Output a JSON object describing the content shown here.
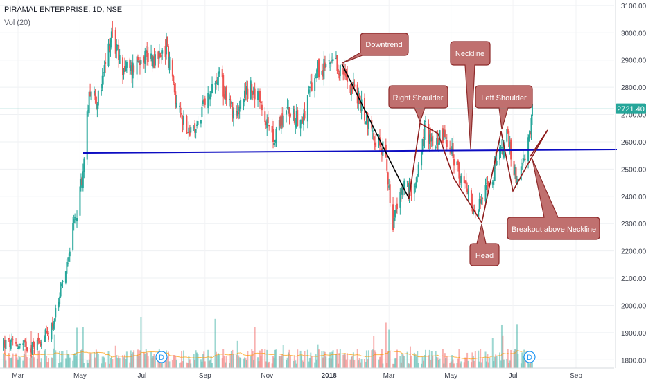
{
  "header": {
    "ticker": "PIRAMAL ENTERPRISE, 1D, NSE",
    "volume_label": "Vol (20)"
  },
  "colors": {
    "up": "#26a69a",
    "down": "#ef5350",
    "neckline": "#0d0dc2",
    "callout_fill": "#c0706f",
    "callout_stroke": "#8e2a2a",
    "pattern_line": "#8e1b1b",
    "trend_line": "#000000",
    "last_price_bg": "#26a69a"
  },
  "chart_data": {
    "type": "candlestick",
    "ylim": [
      1750,
      3120
    ],
    "yticks": [
      1800,
      1900,
      2000,
      2100,
      2200,
      2300,
      2400,
      2500,
      2600,
      2700,
      2800,
      2900,
      3000,
      3100
    ],
    "x_labels": [
      "Mar",
      "May",
      "Jul",
      "Sep",
      "Nov",
      "2018",
      "Mar",
      "May",
      "Jul",
      "Sep"
    ],
    "last_price": "2721.40",
    "price_path": [
      [
        "2017-02-15",
        1860
      ],
      [
        "2017-03-01",
        1855
      ],
      [
        "2017-03-15",
        1850
      ],
      [
        "2017-04-01",
        1900
      ],
      [
        "2017-04-10",
        2000
      ],
      [
        "2017-04-20",
        2200
      ],
      [
        "2017-04-28",
        2350
      ],
      [
        "2017-05-05",
        2520
      ],
      [
        "2017-05-10",
        2800
      ],
      [
        "2017-05-20",
        2750
      ],
      [
        "2017-06-01",
        3010
      ],
      [
        "2017-06-10",
        2880
      ],
      [
        "2017-06-20",
        2860
      ],
      [
        "2017-07-01",
        2930
      ],
      [
        "2017-07-15",
        2900
      ],
      [
        "2017-07-25",
        2950
      ],
      [
        "2017-08-05",
        2720
      ],
      [
        "2017-08-20",
        2620
      ],
      [
        "2017-09-01",
        2740
      ],
      [
        "2017-09-15",
        2830
      ],
      [
        "2017-10-01",
        2700
      ],
      [
        "2017-10-15",
        2800
      ],
      [
        "2017-10-25",
        2750
      ],
      [
        "2017-11-05",
        2600
      ],
      [
        "2017-11-20",
        2720
      ],
      [
        "2017-12-05",
        2680
      ],
      [
        "2017-12-20",
        2860
      ],
      [
        "2018-01-05",
        2880
      ],
      [
        "2018-01-15",
        2850
      ],
      [
        "2018-01-25",
        2800
      ],
      [
        "2018-02-05",
        2700
      ],
      [
        "2018-02-15",
        2620
      ],
      [
        "2018-02-25",
        2560
      ],
      [
        "2018-03-05",
        2300
      ],
      [
        "2018-03-15",
        2450
      ],
      [
        "2018-03-25",
        2400
      ],
      [
        "2018-04-05",
        2650
      ],
      [
        "2018-04-15",
        2600
      ],
      [
        "2018-04-25",
        2630
      ],
      [
        "2018-05-05",
        2520
      ],
      [
        "2018-05-15",
        2430
      ],
      [
        "2018-05-25",
        2350
      ],
      [
        "2018-06-05",
        2420
      ],
      [
        "2018-06-15",
        2520
      ],
      [
        "2018-06-25",
        2620
      ],
      [
        "2018-07-05",
        2450
      ],
      [
        "2018-07-15",
        2560
      ],
      [
        "2018-07-20",
        2721.4
      ]
    ],
    "annotations": {
      "downtrend": "Downtrend",
      "neckline": "Neckline",
      "right_shoulder": "Right Shoulder",
      "left_shoulder": "Left Shoulder",
      "head": "Head",
      "breakout": "Breakout above Neckline"
    },
    "dividend_marker": "D",
    "neckline_level": 2550
  }
}
